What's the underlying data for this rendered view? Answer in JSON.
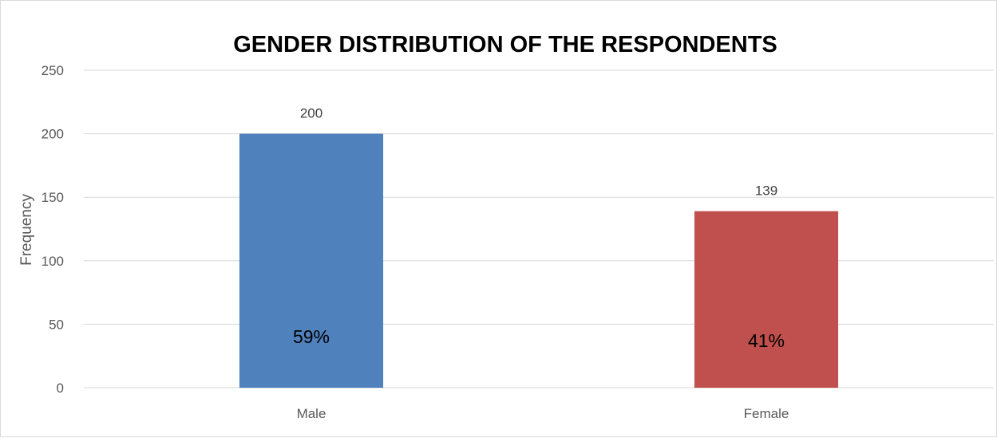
{
  "chart_data": {
    "type": "bar",
    "title": "GENDER DISTRIBUTION OF THE RESPONDENTS",
    "xlabel": "",
    "ylabel": "Frequency",
    "categories": [
      "Male",
      "Female"
    ],
    "values": [
      200,
      139
    ],
    "value_labels": [
      "200",
      "139"
    ],
    "percent_labels": [
      "59%",
      "41%"
    ],
    "colors": [
      "#4f81bd",
      "#c0504d"
    ],
    "ylim": [
      0,
      250
    ],
    "yticks": [
      0,
      50,
      100,
      150,
      200,
      250
    ],
    "grid": true,
    "legend": "none"
  }
}
